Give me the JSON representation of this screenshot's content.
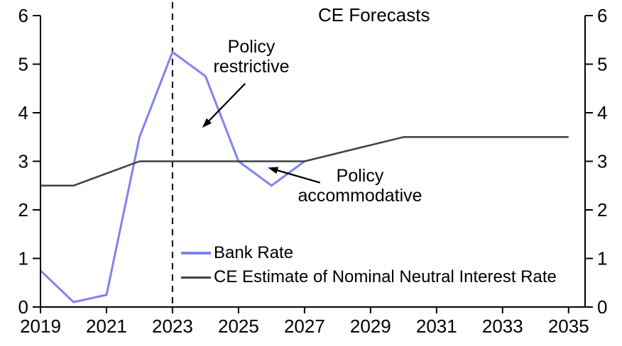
{
  "title": "CE Forecasts",
  "colors": {
    "bank_rate": "#8182EF",
    "neutral": "#3F4045",
    "axis": "#000000",
    "forecast_divider": "#000000",
    "text": "#000000",
    "background": "#FFFFFF"
  },
  "legend": {
    "items": [
      {
        "label": "Bank Rate",
        "color_key": "bank_rate"
      },
      {
        "label": "CE Estimate of Nominal Neutral Interest Rate",
        "color_key": "neutral"
      }
    ]
  },
  "annotations": {
    "restrictive": {
      "line1": "Policy",
      "line2": "restrictive"
    },
    "accommodative": {
      "line1": "Policy",
      "line2": "accommodative"
    }
  },
  "chart_data": {
    "type": "line",
    "title": "CE Forecasts",
    "xlabel": "",
    "ylabel": "",
    "xlim": [
      2019,
      2035.5
    ],
    "ylim": [
      0,
      6
    ],
    "x_ticks": [
      2019,
      2021,
      2023,
      2025,
      2027,
      2029,
      2031,
      2033,
      2035
    ],
    "y_ticks": [
      0,
      1,
      2,
      3,
      4,
      5,
      6
    ],
    "y_axis_sides": [
      "left",
      "right"
    ],
    "grid": false,
    "forecast_divider_x": 2023,
    "series": [
      {
        "name": "Bank Rate",
        "color_key": "bank_rate",
        "points": [
          [
            2019,
            0.75
          ],
          [
            2020,
            0.1
          ],
          [
            2021,
            0.25
          ],
          [
            2022,
            3.5
          ],
          [
            2023,
            5.25
          ],
          [
            2024,
            4.75
          ],
          [
            2025,
            3.0
          ],
          [
            2026,
            2.5
          ],
          [
            2027,
            3.0
          ]
        ]
      },
      {
        "name": "CE Estimate of Nominal Neutral Interest Rate",
        "color_key": "neutral",
        "points": [
          [
            2019,
            2.5
          ],
          [
            2020,
            2.5
          ],
          [
            2022,
            3.0
          ],
          [
            2027,
            3.0
          ],
          [
            2030,
            3.5
          ],
          [
            2035,
            3.5
          ]
        ]
      }
    ],
    "arrows": [
      {
        "for": "restrictive",
        "from": [
          2025.2,
          4.6
        ],
        "to": [
          2023.9,
          3.69
        ]
      },
      {
        "for": "accommodative",
        "from": [
          2027.47,
          2.56
        ],
        "to": [
          2025.89,
          2.87
        ]
      }
    ]
  }
}
